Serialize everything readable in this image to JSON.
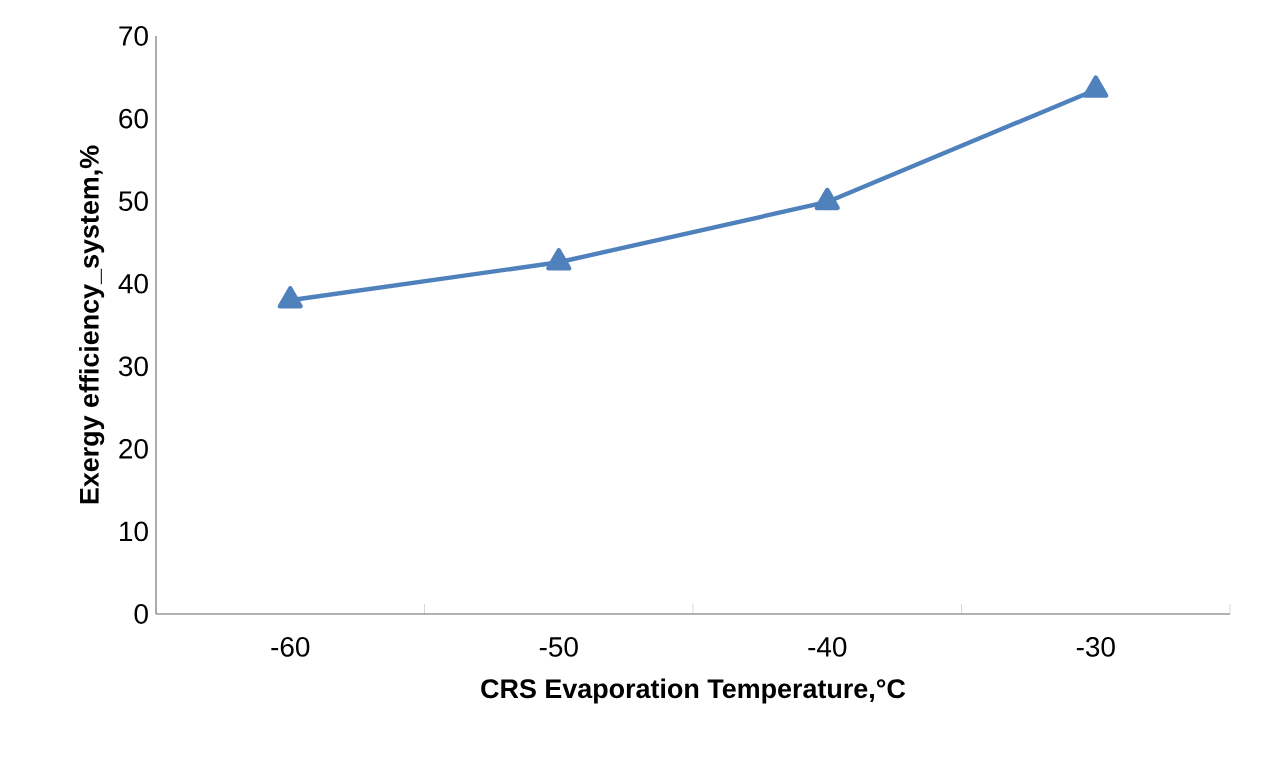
{
  "chart_data": {
    "type": "line",
    "xlabel": "CRS Evaporation Temperature,°C",
    "ylabel": "Exergy efficiency_system,%",
    "categories": [
      "-60",
      "-50",
      "-40",
      "-30"
    ],
    "series": [
      {
        "color": "#4f81bd",
        "values": [
          38.0,
          42.6,
          49.9,
          63.5
        ]
      }
    ],
    "ylim": [
      0,
      70
    ],
    "yticks": [
      0,
      10,
      20,
      30,
      40,
      50,
      60,
      70
    ],
    "marker": "triangle",
    "line_style": "solid",
    "grid": false
  }
}
